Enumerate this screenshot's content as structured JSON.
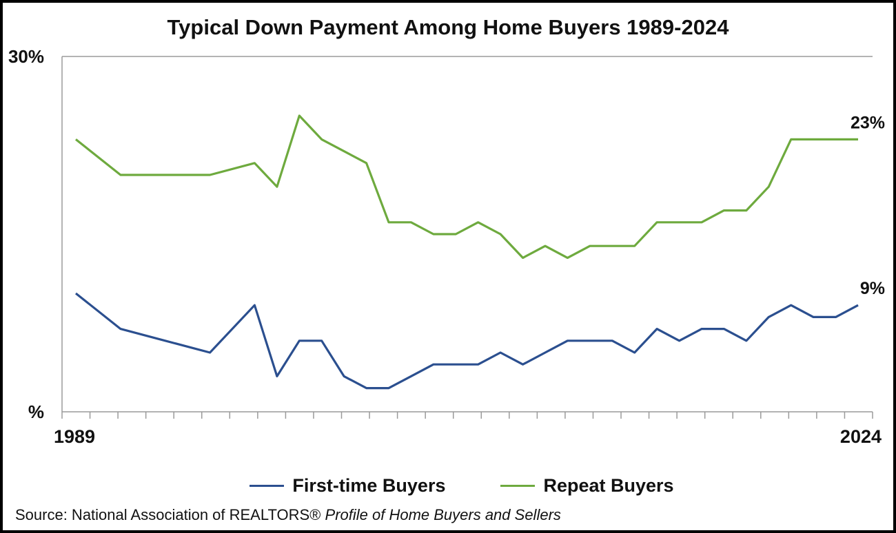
{
  "chart_data": {
    "type": "line",
    "title": "Typical Down Payment Among Home Buyers 1989-2024",
    "x_tick_labels": [
      "1989",
      "2024"
    ],
    "y_tick_labels": [
      "30%",
      "%"
    ],
    "ylim": [
      0,
      30
    ],
    "grid": false,
    "legend_position": "bottom",
    "x": [
      1989,
      1991,
      1993,
      1995,
      1997,
      1998,
      1999,
      2000,
      2001,
      2002,
      2003,
      2004,
      2005,
      2006,
      2007,
      2008,
      2009,
      2010,
      2011,
      2012,
      2013,
      2014,
      2015,
      2016,
      2017,
      2018,
      2019,
      2020,
      2021,
      2022,
      2023,
      2024
    ],
    "series": [
      {
        "name": "First-time Buyers",
        "color": "#2b4f8f",
        "values": [
          10,
          7,
          6,
          5,
          9,
          3,
          6,
          6,
          3,
          2,
          2,
          3,
          4,
          4,
          4,
          5,
          4,
          5,
          6,
          6,
          6,
          5,
          7,
          6,
          7,
          7,
          6,
          8,
          9,
          8,
          8,
          9
        ],
        "end_label": "9%"
      },
      {
        "name": "Repeat Buyers",
        "color": "#6eaa3e",
        "values": [
          23,
          20,
          20,
          20,
          21,
          19,
          25,
          23,
          22,
          21,
          16,
          16,
          15,
          15,
          16,
          15,
          13,
          14,
          13,
          14,
          14,
          14,
          16,
          16,
          16,
          17,
          17,
          19,
          23,
          23,
          23,
          23
        ],
        "end_label": "23%"
      }
    ]
  },
  "legend": {
    "items": [
      {
        "label": "First-time Buyers",
        "color": "#2b4f8f"
      },
      {
        "label": "Repeat Buyers",
        "color": "#6eaa3e"
      }
    ]
  },
  "source": {
    "prefix": "Source: National Association of REALTORS®",
    "italic": "Profile of Home Buyers and Sellers"
  }
}
